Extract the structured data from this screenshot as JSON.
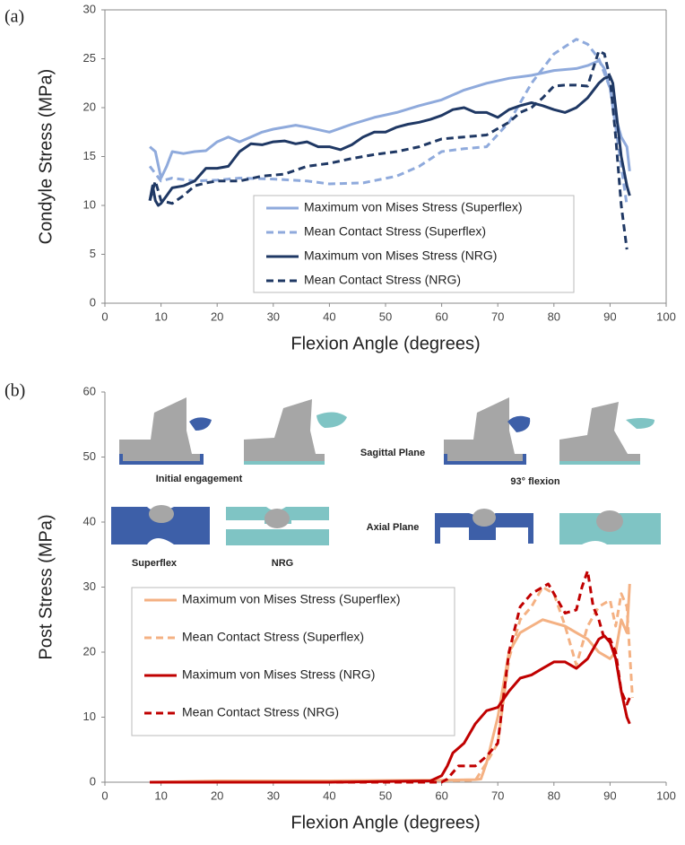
{
  "chart_data": [
    {
      "type": "line",
      "panel_label": "(a)",
      "xlabel": "Flexion Angle (degrees)",
      "ylabel": "Condyle Stress (MPa)",
      "xlim": [
        0,
        100
      ],
      "xticks": [
        0,
        10,
        20,
        30,
        40,
        50,
        60,
        70,
        80,
        90,
        100
      ],
      "ylim": [
        0,
        30
      ],
      "yticks": [
        0,
        5,
        10,
        15,
        20,
        25,
        30
      ],
      "legend": "lower-center",
      "series": [
        {
          "name": "Maximum von Mises Stress (Superflex)",
          "color": "#8faadc",
          "dash": false,
          "x": [
            8,
            9,
            10,
            11,
            12,
            14,
            16,
            18,
            20,
            22,
            24,
            26,
            28,
            30,
            34,
            36,
            40,
            44,
            48,
            52,
            56,
            60,
            64,
            68,
            72,
            76,
            80,
            84,
            86,
            88,
            89,
            90,
            91,
            92,
            93,
            93.5
          ],
          "values": [
            16,
            15.5,
            12.8,
            14,
            15.5,
            15.3,
            15.5,
            15.6,
            16.5,
            17,
            16.5,
            17,
            17.5,
            17.8,
            18.2,
            18,
            17.5,
            18.3,
            19,
            19.5,
            20.2,
            20.8,
            21.8,
            22.5,
            23,
            23.3,
            23.8,
            24,
            24.3,
            24.8,
            24,
            22,
            19,
            17,
            16,
            13.5
          ]
        },
        {
          "name": "Mean Contact Stress (Superflex)",
          "color": "#8faadc",
          "dash": true,
          "x": [
            8,
            10,
            12,
            16,
            20,
            24,
            30,
            36,
            40,
            46,
            52,
            56,
            60,
            64,
            68,
            72,
            76,
            80,
            84,
            86,
            88,
            90,
            91,
            92,
            93
          ],
          "values": [
            14,
            12.5,
            12.8,
            12.5,
            12.6,
            12.8,
            12.7,
            12.5,
            12.2,
            12.3,
            13,
            14,
            15.5,
            15.8,
            16,
            18.5,
            22.5,
            25.5,
            27,
            26.5,
            25,
            22,
            18,
            14,
            10
          ]
        },
        {
          "name": "Maximum von Mises Stress (NRG)",
          "color": "#1f3864",
          "dash": false,
          "x": [
            8,
            8.5,
            9,
            9.5,
            10,
            11,
            12,
            14,
            16,
            18,
            20,
            22,
            24,
            26,
            28,
            30,
            32,
            34,
            36,
            38,
            40,
            42,
            44,
            46,
            48,
            50,
            52,
            54,
            56,
            58,
            60,
            62,
            64,
            66,
            68,
            70,
            72,
            74,
            76,
            78,
            80,
            82,
            84,
            86,
            88,
            89,
            90,
            90.5,
            91,
            92,
            93,
            93.5
          ],
          "values": [
            10.5,
            12,
            10.5,
            10,
            10.2,
            11,
            11.8,
            12,
            12.5,
            13.8,
            13.8,
            14,
            15.5,
            16.3,
            16.2,
            16.5,
            16.6,
            16.3,
            16.5,
            16,
            16,
            15.7,
            16.2,
            17,
            17.5,
            17.5,
            18,
            18.3,
            18.5,
            18.8,
            19.2,
            19.8,
            20,
            19.5,
            19.5,
            19,
            19.8,
            20.2,
            20.5,
            20.2,
            19.8,
            19.5,
            20,
            21,
            22.5,
            23,
            23.2,
            22.5,
            20,
            15,
            12,
            11
          ]
        },
        {
          "name": "Mean Contact Stress (NRG)",
          "color": "#1f3864",
          "dash": true,
          "x": [
            8,
            9,
            10,
            12,
            14,
            16,
            18,
            20,
            24,
            28,
            32,
            36,
            40,
            44,
            48,
            52,
            56,
            60,
            64,
            68,
            72,
            74,
            76,
            78,
            80,
            82,
            84,
            86,
            87,
            88,
            89,
            90,
            91,
            92,
            93
          ],
          "values": [
            10.5,
            12.5,
            10.5,
            10.2,
            11,
            12,
            12.3,
            12.5,
            12.5,
            13,
            13.2,
            14,
            14.3,
            14.8,
            15.2,
            15.5,
            16,
            16.8,
            17,
            17.2,
            18.5,
            19.5,
            20,
            21,
            22.2,
            22.3,
            22.3,
            22.2,
            24,
            25.8,
            25.5,
            23,
            17,
            10,
            5.5
          ]
        }
      ]
    },
    {
      "type": "line",
      "panel_label": "(b)",
      "xlabel": "Flexion Angle (degrees)",
      "ylabel": "Post Stress (MPa)",
      "xlim": [
        0,
        100
      ],
      "xticks": [
        0,
        10,
        20,
        30,
        40,
        50,
        60,
        70,
        80,
        90,
        100
      ],
      "ylim": [
        0,
        60
      ],
      "yticks": [
        0,
        10,
        20,
        30,
        40,
        50,
        60
      ],
      "legend": "lower-left",
      "annotations": [
        "Sagittal Plane",
        "Initial engagement",
        "93° flexion",
        "Axial Plane",
        "Superflex",
        "NRG"
      ],
      "series": [
        {
          "name": "Maximum von Mises Stress (Superflex)",
          "color": "#f4b183",
          "dash": false,
          "x": [
            8,
            20,
            40,
            60,
            66,
            67,
            68,
            70,
            72,
            74,
            76,
            78,
            80,
            82,
            84,
            86,
            88,
            90,
            91,
            92,
            93,
            93.5
          ],
          "values": [
            0,
            0.2,
            0.2,
            0.3,
            0.4,
            0.5,
            3,
            10,
            20,
            23,
            24,
            25,
            24.5,
            24,
            23,
            22,
            20,
            19,
            20,
            25,
            23,
            30.5
          ]
        },
        {
          "name": "Mean Contact Stress (Superflex)",
          "color": "#f4b183",
          "dash": true,
          "x": [
            8,
            40,
            60,
            66,
            68,
            70,
            72,
            74,
            76,
            78,
            80,
            82,
            84,
            86,
            88,
            90,
            91,
            92,
            93,
            94
          ],
          "values": [
            0,
            0.2,
            0.2,
            0.3,
            3,
            6,
            19,
            25,
            27,
            30,
            29,
            24,
            18,
            24,
            27,
            28,
            24,
            29,
            27,
            13
          ]
        },
        {
          "name": "Maximum von Mises Stress (NRG)",
          "color": "#c00000",
          "dash": false,
          "x": [
            8,
            20,
            40,
            58,
            60,
            61,
            62,
            64,
            66,
            68,
            70,
            72,
            74,
            76,
            78,
            80,
            82,
            84,
            86,
            88,
            89,
            90,
            91,
            92,
            93,
            93.5
          ],
          "values": [
            0,
            0,
            0,
            0.2,
            1,
            2.5,
            4.5,
            6,
            9,
            11,
            11.5,
            14,
            16,
            16.5,
            17.5,
            18.5,
            18.5,
            17.5,
            19,
            22,
            22.5,
            21.5,
            19,
            14,
            10,
            9
          ]
        },
        {
          "name": "Mean Contact Stress (NRG)",
          "color": "#c00000",
          "dash": true,
          "x": [
            8,
            40,
            60,
            61,
            62,
            63,
            64,
            66,
            68,
            70,
            72,
            74,
            76,
            78,
            79,
            80,
            82,
            84,
            85,
            86,
            87,
            88,
            89,
            90,
            91,
            92,
            93,
            93.5
          ],
          "values": [
            0,
            0,
            0,
            0.5,
            1.5,
            2.5,
            2.5,
            2.5,
            4,
            6,
            20,
            27,
            29,
            30,
            30.5,
            29,
            26,
            26.5,
            30,
            32.5,
            27,
            25,
            22,
            22,
            20,
            14,
            12,
            13
          ]
        }
      ]
    }
  ]
}
